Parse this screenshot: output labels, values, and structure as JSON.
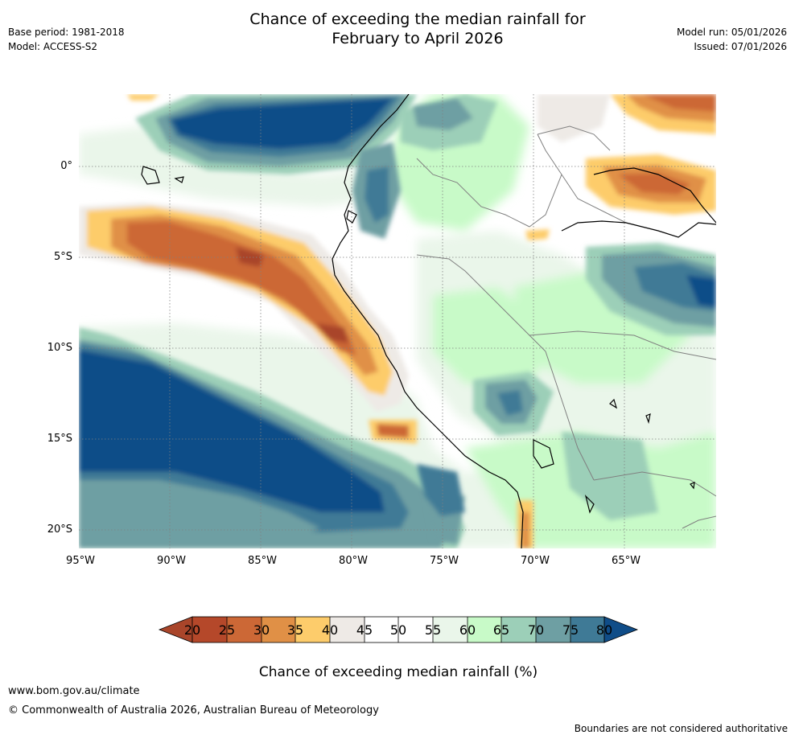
{
  "header": {
    "title_line1": "Chance of exceeding the median rainfall for",
    "title_line2": "February to April 2026",
    "base_period": "Base period: 1981-2018",
    "model": "Model: ACCESS-S2",
    "model_run": "Model run: 05/01/2026",
    "issued": "Issued: 07/01/2026"
  },
  "axes": {
    "lat_labels": [
      "0°",
      "5°S",
      "10°S",
      "15°S",
      "20°S"
    ],
    "lon_labels": [
      "95°W",
      "90°W",
      "85°W",
      "80°W",
      "75°W",
      "70°W",
      "65°W"
    ]
  },
  "colorbar": {
    "title": "Chance of exceeding median rainfall (%)",
    "ticks": [
      "20",
      "25",
      "30",
      "35",
      "40",
      "45",
      "50",
      "55",
      "60",
      "65",
      "70",
      "75",
      "80"
    ],
    "colors": [
      "#a9452a",
      "#b5482a",
      "#cc6836",
      "#e09046",
      "#fdcc6b",
      "#eeeae6",
      "#ffffff",
      "#ffffff",
      "#eaf6ea",
      "#c8fac8",
      "#9ccfb8",
      "#6e9fa3",
      "#3f7a96",
      "#104d88"
    ]
  },
  "footer": {
    "website": "www.bom.gov.au/climate",
    "copyright": "© Commonwealth of Australia 2026, Australian Bureau of Meteorology",
    "disclaimer": "Boundaries are not considered authoritative"
  }
}
